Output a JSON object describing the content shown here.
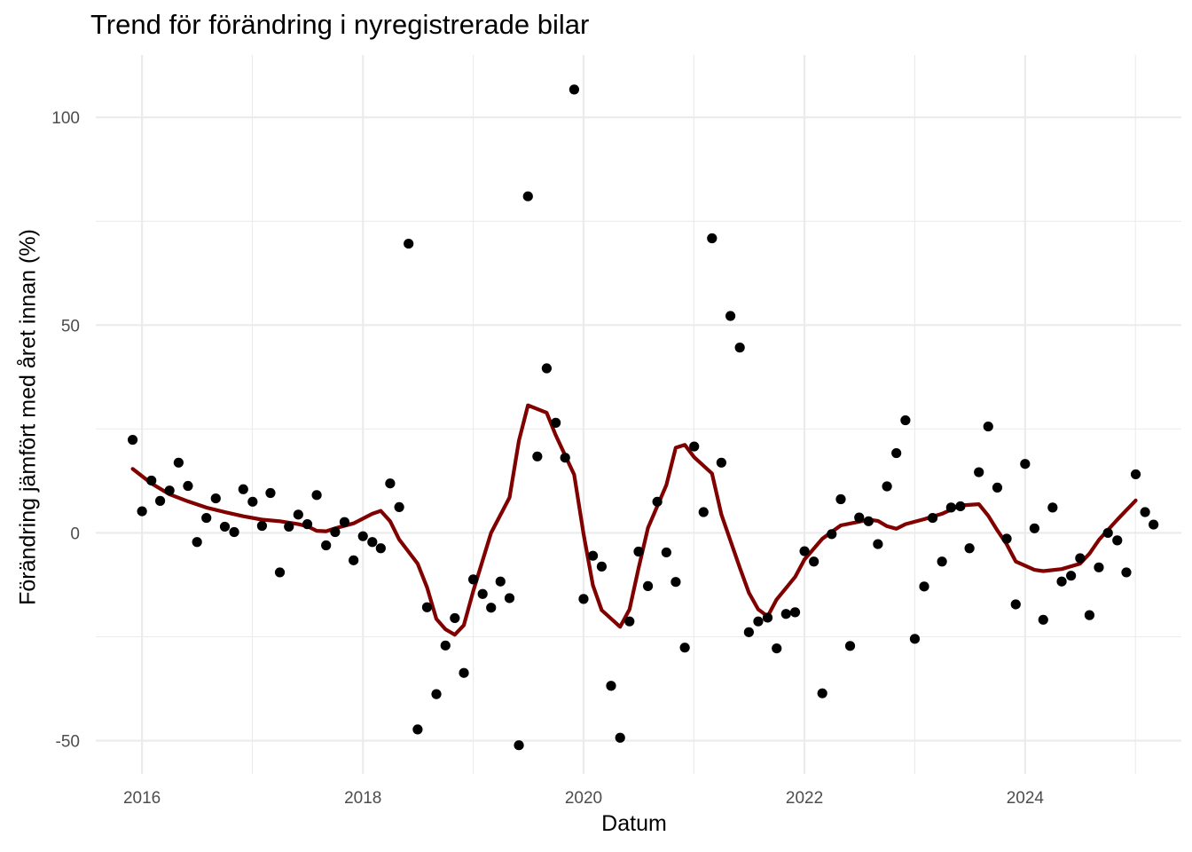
{
  "chart_data": {
    "type": "scatter",
    "title": "Trend för förändring i nyregistrerade bilar",
    "xlabel": "Datum",
    "ylabel": "Förändring jämfört med året innan (%)",
    "xlim": [
      "2015-08-01",
      "2025-06-01"
    ],
    "ylim": [
      -58,
      115
    ],
    "x_ticks": [
      "2016-01-01",
      "2018-01-01",
      "2020-01-01",
      "2022-01-01",
      "2024-01-01"
    ],
    "x_tick_labels": [
      "2016",
      "2018",
      "2020",
      "2022",
      "2024"
    ],
    "y_ticks": [
      -50,
      0,
      50,
      100
    ],
    "y_tick_labels": [
      "-50",
      "0",
      "50",
      "100"
    ],
    "grid": true,
    "legend": "none",
    "colors": {
      "points": "#000000",
      "trend": "#800000",
      "grid": "#ebebeb",
      "background": "#ffffff"
    },
    "series": [
      {
        "type": "scatter",
        "points": [
          [
            "2015-12-01",
            22.4
          ],
          [
            "2016-01-01",
            5.2
          ],
          [
            "2016-02-01",
            12.6
          ],
          [
            "2016-03-01",
            7.7
          ],
          [
            "2016-04-01",
            10.2
          ],
          [
            "2016-05-01",
            16.9
          ],
          [
            "2016-06-01",
            11.3
          ],
          [
            "2016-07-01",
            -2.2
          ],
          [
            "2016-08-01",
            3.6
          ],
          [
            "2016-09-01",
            8.3
          ],
          [
            "2016-10-01",
            1.5
          ],
          [
            "2016-11-01",
            0.2
          ],
          [
            "2016-12-01",
            10.5
          ],
          [
            "2017-01-01",
            7.5
          ],
          [
            "2017-02-01",
            1.7
          ],
          [
            "2017-03-01",
            9.6
          ],
          [
            "2017-04-01",
            -9.5
          ],
          [
            "2017-05-01",
            1.5
          ],
          [
            "2017-06-01",
            4.4
          ],
          [
            "2017-07-01",
            2.1
          ],
          [
            "2017-08-01",
            9.1
          ],
          [
            "2017-09-01",
            -3.0
          ],
          [
            "2017-10-01",
            0.2
          ],
          [
            "2017-11-01",
            2.6
          ],
          [
            "2017-12-01",
            -6.6
          ],
          [
            "2018-01-01",
            -0.8
          ],
          [
            "2018-02-01",
            -2.2
          ],
          [
            "2018-03-01",
            -3.7
          ],
          [
            "2018-04-01",
            11.9
          ],
          [
            "2018-05-01",
            6.2
          ],
          [
            "2018-06-01",
            69.6
          ],
          [
            "2018-07-01",
            -47.3
          ],
          [
            "2018-08-01",
            -17.9
          ],
          [
            "2018-09-01",
            -38.8
          ],
          [
            "2018-10-01",
            -27.1
          ],
          [
            "2018-11-01",
            -20.5
          ],
          [
            "2018-12-01",
            -33.7
          ],
          [
            "2019-01-01",
            -11.2
          ],
          [
            "2019-02-01",
            -14.7
          ],
          [
            "2019-03-01",
            -18.0
          ],
          [
            "2019-04-01",
            -11.7
          ],
          [
            "2019-05-01",
            -15.7
          ],
          [
            "2019-06-01",
            -51.1
          ],
          [
            "2019-07-01",
            81.0
          ],
          [
            "2019-08-01",
            18.4
          ],
          [
            "2019-09-01",
            39.6
          ],
          [
            "2019-10-01",
            26.5
          ],
          [
            "2019-11-01",
            18.1
          ],
          [
            "2019-12-01",
            106.7
          ],
          [
            "2020-01-01",
            -15.9
          ],
          [
            "2020-02-01",
            -5.5
          ],
          [
            "2020-03-01",
            -8.1
          ],
          [
            "2020-04-01",
            -36.8
          ],
          [
            "2020-05-01",
            -49.3
          ],
          [
            "2020-06-01",
            -21.3
          ],
          [
            "2020-07-01",
            -4.5
          ],
          [
            "2020-08-01",
            -12.8
          ],
          [
            "2020-09-01",
            7.5
          ],
          [
            "2020-10-01",
            -4.7
          ],
          [
            "2020-11-01",
            -11.8
          ],
          [
            "2020-12-01",
            -27.6
          ],
          [
            "2021-01-01",
            20.8
          ],
          [
            "2021-02-01",
            5.0
          ],
          [
            "2021-03-01",
            70.9
          ],
          [
            "2021-04-01",
            16.9
          ],
          [
            "2021-05-01",
            52.2
          ],
          [
            "2021-06-01",
            44.6
          ],
          [
            "2021-07-01",
            -23.9
          ],
          [
            "2021-08-01",
            -21.3
          ],
          [
            "2021-09-01",
            -20.4
          ],
          [
            "2021-10-01",
            -27.8
          ],
          [
            "2021-11-01",
            -19.5
          ],
          [
            "2021-12-01",
            -19.1
          ],
          [
            "2022-01-01",
            -4.4
          ],
          [
            "2022-02-01",
            -6.9
          ],
          [
            "2022-03-01",
            -38.6
          ],
          [
            "2022-04-01",
            -0.3
          ],
          [
            "2022-05-01",
            8.1
          ],
          [
            "2022-06-01",
            -27.2
          ],
          [
            "2022-07-01",
            3.7
          ],
          [
            "2022-08-01",
            2.8
          ],
          [
            "2022-09-01",
            -2.7
          ],
          [
            "2022-10-01",
            11.2
          ],
          [
            "2022-11-01",
            19.2
          ],
          [
            "2022-12-01",
            27.1
          ],
          [
            "2023-01-01",
            -25.5
          ],
          [
            "2023-02-01",
            -12.9
          ],
          [
            "2023-03-01",
            3.6
          ],
          [
            "2023-04-01",
            -6.9
          ],
          [
            "2023-05-01",
            6.1
          ],
          [
            "2023-06-01",
            6.4
          ],
          [
            "2023-07-01",
            -3.7
          ],
          [
            "2023-08-01",
            14.6
          ],
          [
            "2023-09-01",
            25.6
          ],
          [
            "2023-10-01",
            10.9
          ],
          [
            "2023-11-01",
            -1.4
          ],
          [
            "2023-12-01",
            -17.2
          ],
          [
            "2024-01-01",
            16.6
          ],
          [
            "2024-02-01",
            1.1
          ],
          [
            "2024-03-01",
            -20.9
          ],
          [
            "2024-04-01",
            6.1
          ],
          [
            "2024-05-01",
            -11.7
          ],
          [
            "2024-06-01",
            -10.3
          ],
          [
            "2024-07-01",
            -6.1
          ],
          [
            "2024-08-01",
            -19.8
          ],
          [
            "2024-09-01",
            -8.3
          ],
          [
            "2024-10-01",
            0.0
          ],
          [
            "2024-11-01",
            -1.8
          ],
          [
            "2024-12-01",
            -9.5
          ],
          [
            "2025-01-01",
            14.1
          ],
          [
            "2025-02-01",
            5.0
          ],
          [
            "2025-03-01",
            2.0
          ]
        ]
      },
      {
        "type": "line",
        "points": [
          [
            "2015-12-01",
            15.4
          ],
          [
            "2016-02-01",
            11.9
          ],
          [
            "2016-04-01",
            9.3
          ],
          [
            "2016-06-01",
            7.6
          ],
          [
            "2016-08-01",
            6.1
          ],
          [
            "2016-10-01",
            5.0
          ],
          [
            "2016-12-01",
            4.0
          ],
          [
            "2017-02-01",
            3.2
          ],
          [
            "2017-04-01",
            2.8
          ],
          [
            "2017-06-01",
            2.1
          ],
          [
            "2017-07-01",
            1.6
          ],
          [
            "2017-08-01",
            0.5
          ],
          [
            "2017-09-01",
            0.4
          ],
          [
            "2017-10-01",
            1.1
          ],
          [
            "2017-12-01",
            2.3
          ],
          [
            "2018-02-01",
            4.6
          ],
          [
            "2018-03-01",
            5.3
          ],
          [
            "2018-04-01",
            2.8
          ],
          [
            "2018-05-01",
            -1.6
          ],
          [
            "2018-07-01",
            -7.4
          ],
          [
            "2018-08-01",
            -13.1
          ],
          [
            "2018-09-01",
            -20.7
          ],
          [
            "2018-10-01",
            -23.2
          ],
          [
            "2018-11-01",
            -24.5
          ],
          [
            "2018-12-01",
            -22.2
          ],
          [
            "2019-01-01",
            -14.0
          ],
          [
            "2019-03-01",
            0.0
          ],
          [
            "2019-05-01",
            8.5
          ],
          [
            "2019-06-01",
            22.2
          ],
          [
            "2019-07-01",
            30.7
          ],
          [
            "2019-09-01",
            28.9
          ],
          [
            "2019-10-01",
            23.5
          ],
          [
            "2019-12-01",
            14.0
          ],
          [
            "2020-01-01",
            -0.3
          ],
          [
            "2020-02-01",
            -12.6
          ],
          [
            "2020-03-01",
            -18.6
          ],
          [
            "2020-05-01",
            -22.6
          ],
          [
            "2020-06-01",
            -18.4
          ],
          [
            "2020-07-01",
            -8.5
          ],
          [
            "2020-08-01",
            1.2
          ],
          [
            "2020-10-01",
            11.5
          ],
          [
            "2020-11-01",
            20.5
          ],
          [
            "2020-12-01",
            21.2
          ],
          [
            "2021-01-01",
            18.2
          ],
          [
            "2021-03-01",
            14.3
          ],
          [
            "2021-04-01",
            4.4
          ],
          [
            "2021-06-01",
            -8.4
          ],
          [
            "2021-07-01",
            -14.4
          ],
          [
            "2021-08-01",
            -18.4
          ],
          [
            "2021-09-01",
            -20.1
          ],
          [
            "2021-10-01",
            -16.0
          ],
          [
            "2021-12-01",
            -10.6
          ],
          [
            "2022-01-01",
            -6.4
          ],
          [
            "2022-03-01",
            -1.4
          ],
          [
            "2022-05-01",
            1.8
          ],
          [
            "2022-07-01",
            2.7
          ],
          [
            "2022-08-01",
            3.2
          ],
          [
            "2022-09-01",
            2.9
          ],
          [
            "2022-10-01",
            1.6
          ],
          [
            "2022-11-01",
            1.0
          ],
          [
            "2022-12-01",
            2.1
          ],
          [
            "2023-02-01",
            3.3
          ],
          [
            "2023-04-01",
            4.6
          ],
          [
            "2023-06-01",
            6.6
          ],
          [
            "2023-08-01",
            6.9
          ],
          [
            "2023-09-01",
            4.1
          ],
          [
            "2023-10-01",
            0.6
          ],
          [
            "2023-11-01",
            -2.7
          ],
          [
            "2023-12-01",
            -6.9
          ],
          [
            "2024-02-01",
            -8.9
          ],
          [
            "2024-03-01",
            -9.2
          ],
          [
            "2024-05-01",
            -8.7
          ],
          [
            "2024-07-01",
            -7.4
          ],
          [
            "2024-08-01",
            -5.0
          ],
          [
            "2024-09-01",
            -1.7
          ],
          [
            "2024-11-01",
            3.2
          ],
          [
            "2025-01-01",
            7.8
          ]
        ]
      }
    ]
  }
}
